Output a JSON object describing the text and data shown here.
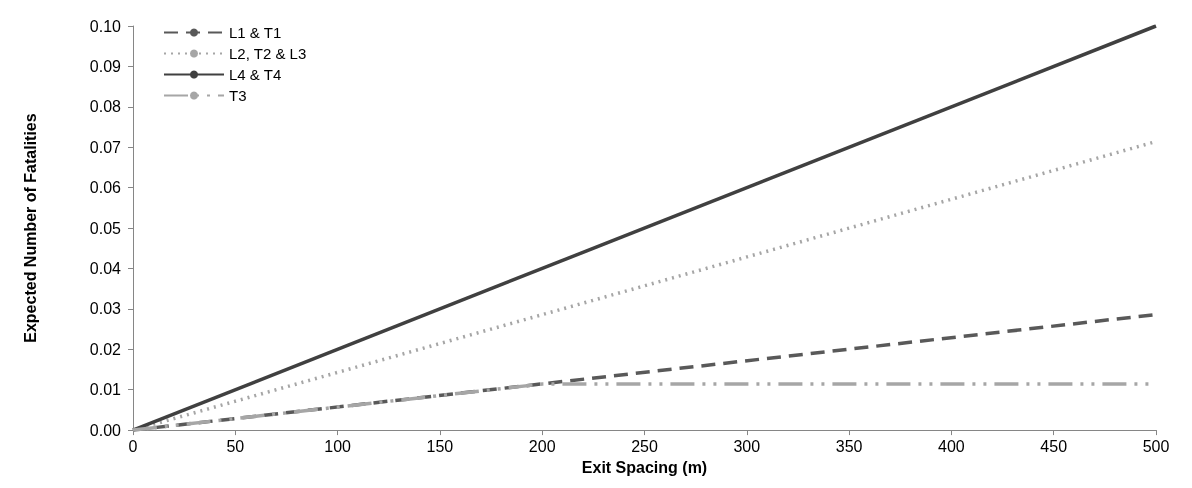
{
  "chart_data": {
    "type": "line",
    "xlabel": "Exit Spacing (m)",
    "ylabel": "Expected Number of Fatalities",
    "xlim": [
      0,
      500
    ],
    "xticks": [
      0,
      50,
      100,
      150,
      200,
      250,
      300,
      350,
      400,
      450,
      500
    ],
    "ylim": [
      0,
      0.1
    ],
    "yticks": [
      {
        "value": 0,
        "label": "0.00"
      },
      {
        "value": 0.01,
        "label": "0.01"
      },
      {
        "value": 0.02,
        "label": "0.02"
      },
      {
        "value": 0.03,
        "label": "0.03"
      },
      {
        "value": 0.04,
        "label": "0.04"
      },
      {
        "value": 0.05,
        "label": "0.05"
      },
      {
        "value": 0.06,
        "label": "0.06"
      },
      {
        "value": 0.07,
        "label": "0.07"
      },
      {
        "value": 0.08,
        "label": "0.08"
      },
      {
        "value": 0.09,
        "label": "0.09"
      },
      {
        "value": 0.1,
        "label": "0.10"
      }
    ],
    "grid": false,
    "legend": "top left",
    "marker": "none",
    "series": [
      {
        "name": "L1 & T1",
        "color": "#595959",
        "line_style": "dashed",
        "x": [
          0,
          500
        ],
        "values": [
          0,
          0.0286
        ]
      },
      {
        "name": "L2, T2 & L3",
        "color": "#a6a6a6",
        "line_style": "dotted",
        "x": [
          0,
          500
        ],
        "values": [
          0,
          0.0714
        ]
      },
      {
        "name": "L4 & T4",
        "color": "#404040",
        "line_style": "solid",
        "x": [
          0,
          500
        ],
        "values": [
          0,
          0.1
        ]
      },
      {
        "name": "T3",
        "color": "#a6a6a6",
        "line_style": "dashdot",
        "x": [
          0,
          200,
          500
        ],
        "values": [
          0,
          0.0114,
          0.0114
        ]
      }
    ]
  }
}
